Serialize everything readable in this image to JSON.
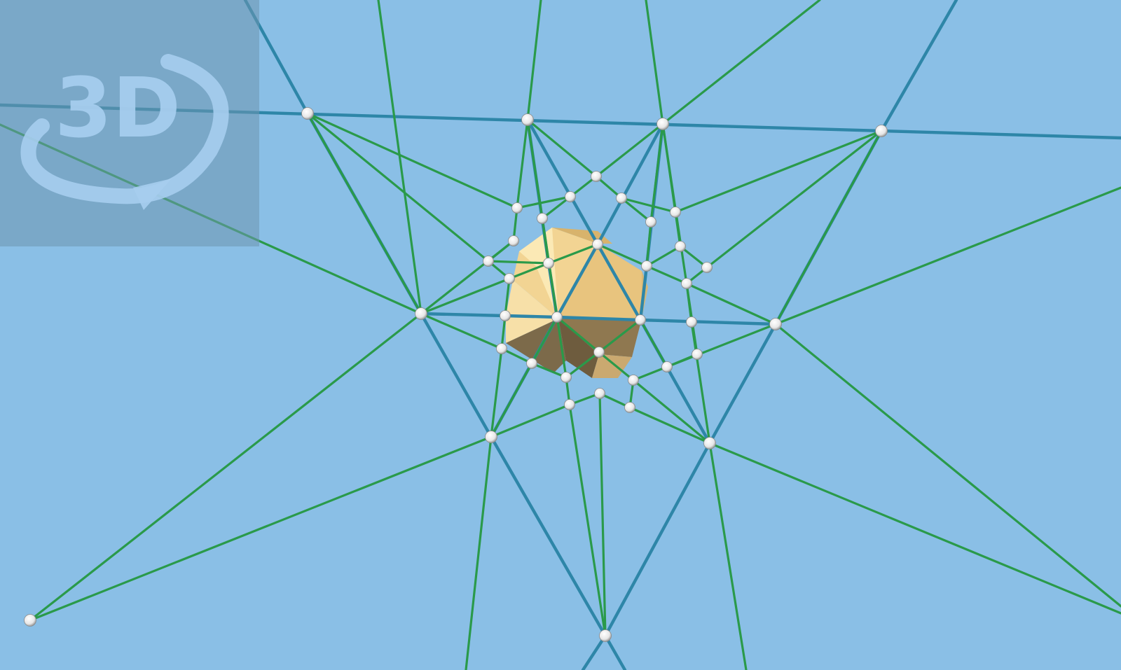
{
  "view_button": {
    "label": "3D",
    "icon": "rotate-3d-icon"
  },
  "scene": {
    "background_color": "#8abfe6",
    "solid_color": "#e8c47e",
    "blue_edge_color": "#2e86a8",
    "green_edge_color": "#2a9a4a",
    "vertex_color": "#ffffff"
  }
}
